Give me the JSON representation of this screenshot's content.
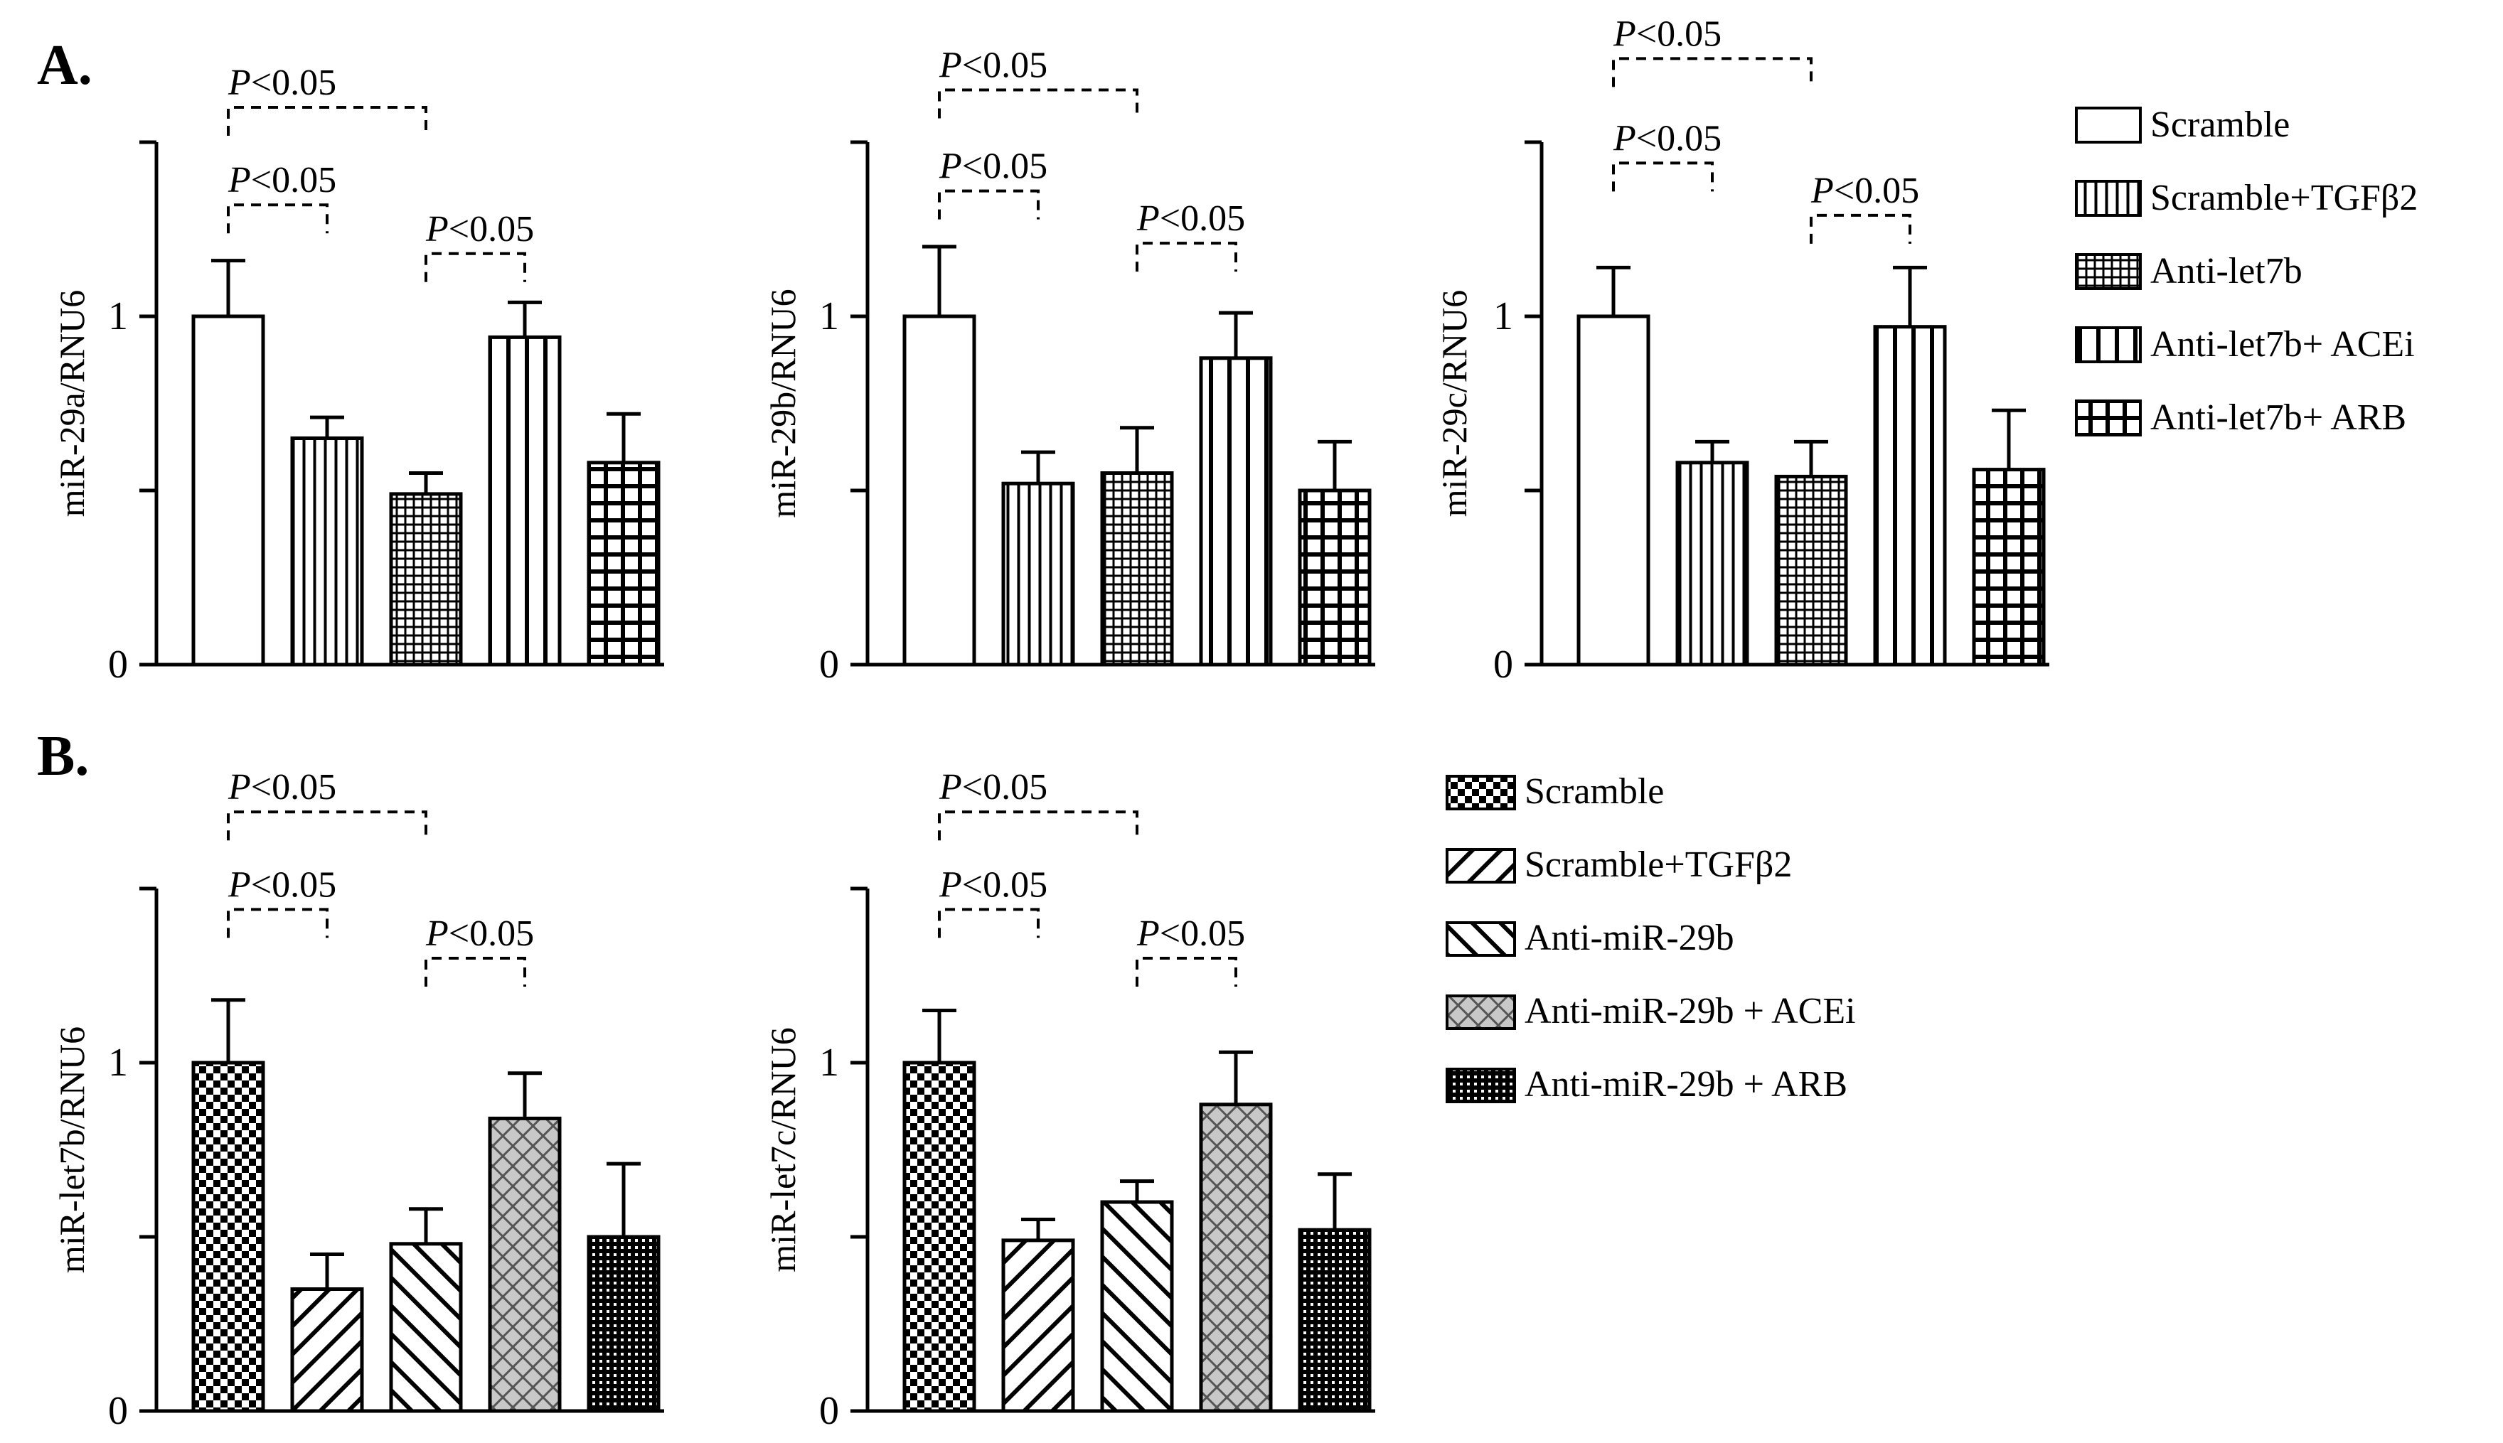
{
  "panels": [
    {
      "id": "A",
      "label": "A."
    },
    {
      "id": "B",
      "label": "B."
    }
  ],
  "legend_a": {
    "entries": [
      {
        "label": "Scramble",
        "pattern": "white"
      },
      {
        "label": "Scramble+TGFβ2",
        "pattern": "vlines-dense"
      },
      {
        "label": "Anti-let7b",
        "pattern": "fine-grid"
      },
      {
        "label": "Anti-let7b+ ACEi",
        "pattern": "vlines-wide"
      },
      {
        "label": "Anti-let7b+ ARB",
        "pattern": "bold-grid"
      }
    ]
  },
  "legend_b": {
    "entries": [
      {
        "label": "Scramble",
        "pattern": "checker"
      },
      {
        "label": "Scramble+TGFβ2",
        "pattern": "diag-back"
      },
      {
        "label": "Anti-miR-29b",
        "pattern": "diag-fwd"
      },
      {
        "label": "Anti-miR-29b + ACEi",
        "pattern": "crosshatch"
      },
      {
        "label": "Anti-miR-29b + ARB",
        "pattern": "dark-dots"
      }
    ]
  },
  "significance_text": {
    "p": "P",
    "rest": "<0.05"
  },
  "chart_data": [
    {
      "type": "bar",
      "panel": "A",
      "ylabel": "miR-29a/RNU6",
      "ylim": [
        0,
        1.5
      ],
      "yticks": [
        0,
        0.5,
        1,
        1.5
      ],
      "ytick_labels": [
        "0",
        "",
        "1",
        ""
      ],
      "categories": [
        "Scramble",
        "Scramble+TGFβ2",
        "Anti-let7b",
        "Anti-let7b+ ACEi",
        "Anti-let7b+ ARB"
      ],
      "values": [
        1.0,
        0.65,
        0.49,
        0.94,
        0.58
      ],
      "errors": [
        0.16,
        0.06,
        0.06,
        0.1,
        0.14
      ],
      "significance": [
        {
          "from": 0,
          "to": 2,
          "label": "P<0.05",
          "level": 1.6
        },
        {
          "from": 0,
          "to": 1,
          "label": "P<0.05",
          "level": 1.32
        },
        {
          "from": 2,
          "to": 3,
          "label": "P<0.05",
          "level": 1.18
        }
      ]
    },
    {
      "type": "bar",
      "panel": "A",
      "ylabel": "miR-29b/RNU6",
      "ylim": [
        0,
        1.5
      ],
      "yticks": [
        0,
        0.5,
        1,
        1.5
      ],
      "ytick_labels": [
        "0",
        "",
        "1",
        ""
      ],
      "categories": [
        "Scramble",
        "Scramble+TGFβ2",
        "Anti-let7b",
        "Anti-let7b+ ACEi",
        "Anti-let7b+ ARB"
      ],
      "values": [
        1.0,
        0.52,
        0.55,
        0.88,
        0.5
      ],
      "errors": [
        0.2,
        0.09,
        0.13,
        0.13,
        0.14
      ],
      "significance": [
        {
          "from": 0,
          "to": 2,
          "label": "P<0.05",
          "level": 1.65
        },
        {
          "from": 0,
          "to": 1,
          "label": "P<0.05",
          "level": 1.36
        },
        {
          "from": 2,
          "to": 3,
          "label": "P<0.05",
          "level": 1.21
        }
      ]
    },
    {
      "type": "bar",
      "panel": "A",
      "ylabel": "miR-29c/RNU6",
      "ylim": [
        0,
        1.5
      ],
      "yticks": [
        0,
        0.5,
        1,
        1.5
      ],
      "ytick_labels": [
        "0",
        "",
        "1",
        ""
      ],
      "categories": [
        "Scramble",
        "Scramble+TGFβ2",
        "Anti-let7b",
        "Anti-let7b+ ACEi",
        "Anti-let7b+ ARB"
      ],
      "values": [
        1.0,
        0.58,
        0.54,
        0.97,
        0.56
      ],
      "errors": [
        0.14,
        0.06,
        0.1,
        0.17,
        0.17
      ],
      "significance": [
        {
          "from": 0,
          "to": 2,
          "label": "P<0.05",
          "level": 1.74
        },
        {
          "from": 0,
          "to": 1,
          "label": "P<0.05",
          "level": 1.44
        },
        {
          "from": 2,
          "to": 3,
          "label": "P<0.05",
          "level": 1.29
        }
      ]
    },
    {
      "type": "bar",
      "panel": "B",
      "ylabel": "miR-let7b/RNU6",
      "ylim": [
        0,
        1.5
      ],
      "yticks": [
        0,
        0.5,
        1,
        1.5
      ],
      "ytick_labels": [
        "0",
        "",
        "1",
        ""
      ],
      "categories": [
        "Scramble",
        "Scramble+TGFβ2",
        "Anti-miR-29b",
        "Anti-miR-29b + ACEi",
        "Anti-miR-29b + ARB"
      ],
      "values": [
        1.0,
        0.35,
        0.48,
        0.84,
        0.5
      ],
      "errors": [
        0.18,
        0.1,
        0.1,
        0.13,
        0.21
      ],
      "significance": [
        {
          "from": 0,
          "to": 2,
          "label": "P<0.05",
          "level": 1.72
        },
        {
          "from": 0,
          "to": 1,
          "label": "P<0.05",
          "level": 1.44
        },
        {
          "from": 2,
          "to": 3,
          "label": "P<0.05",
          "level": 1.3
        }
      ]
    },
    {
      "type": "bar",
      "panel": "B",
      "ylabel": "miR-let7c/RNU6",
      "ylim": [
        0,
        1.5
      ],
      "yticks": [
        0,
        0.5,
        1,
        1.5
      ],
      "ytick_labels": [
        "0",
        "",
        "1",
        ""
      ],
      "categories": [
        "Scramble",
        "Scramble+TGFβ2",
        "Anti-miR-29b",
        "Anti-miR-29b + ACEi",
        "Anti-miR-29b + ARB"
      ],
      "values": [
        1.0,
        0.49,
        0.6,
        0.88,
        0.52
      ],
      "errors": [
        0.15,
        0.06,
        0.06,
        0.15,
        0.16
      ],
      "significance": [
        {
          "from": 0,
          "to": 2,
          "label": "P<0.05",
          "level": 1.72
        },
        {
          "from": 0,
          "to": 1,
          "label": "P<0.05",
          "level": 1.44
        },
        {
          "from": 2,
          "to": 3,
          "label": "P<0.05",
          "level": 1.3
        }
      ]
    }
  ]
}
